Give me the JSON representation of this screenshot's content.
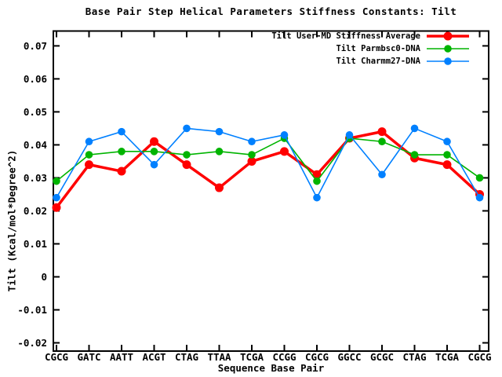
{
  "window": {
    "background": "#ffffff",
    "axis_color": "#000000"
  },
  "chart_data": {
    "type": "line",
    "title": "Base Pair Step Helical Parameters Stiffness Constants: Tilt",
    "xlabel": "Sequence Base Pair",
    "ylabel": "Tilt (Kcal/mol*Degree^2)",
    "categories": [
      "CGCG",
      "GATC",
      "AATT",
      "ACGT",
      "CTAG",
      "TTAA",
      "TCGA",
      "CCGG",
      "CGCG",
      "GGCC",
      "GCGC",
      "CTAG",
      "TCGA",
      "CGCG"
    ],
    "series": [
      {
        "name": "Tilt User-MD Stiffness Average",
        "color": "#ff0000",
        "line_width": 3.5,
        "marker_radius": 5.5,
        "values": [
          0.021,
          0.034,
          0.032,
          0.041,
          0.034,
          0.027,
          0.035,
          0.038,
          0.031,
          0.042,
          0.044,
          0.036,
          0.034,
          0.025
        ]
      },
      {
        "name": "Tilt Parmbsc0-DNA",
        "color": "#00b400",
        "line_width": 1.6,
        "marker_radius": 4.8,
        "values": [
          0.029,
          0.037,
          0.038,
          0.038,
          0.037,
          0.038,
          0.037,
          0.042,
          0.029,
          0.042,
          0.041,
          0.037,
          0.037,
          0.03
        ]
      },
      {
        "name": "Tilt Charmm27-DNA",
        "color": "#0080ff",
        "line_width": 1.6,
        "marker_radius": 4.8,
        "values": [
          0.024,
          0.041,
          0.044,
          0.034,
          0.045,
          0.044,
          0.041,
          0.043,
          0.024,
          0.043,
          0.031,
          0.045,
          0.041,
          0.024
        ]
      }
    ],
    "ylim": [
      -0.0225,
      0.0745
    ],
    "yticks": [
      -0.02,
      -0.01,
      0,
      0.01,
      0.02,
      0.03,
      0.04,
      0.05,
      0.06,
      0.07
    ],
    "ytick_labels": [
      "-0.02",
      "-0.01",
      "0",
      "0.01",
      "0.02",
      "0.03",
      "0.04",
      "0.05",
      "0.06",
      "0.07"
    ],
    "legend_position": "top-right",
    "grid": false,
    "marker_style": "filled-circle"
  }
}
